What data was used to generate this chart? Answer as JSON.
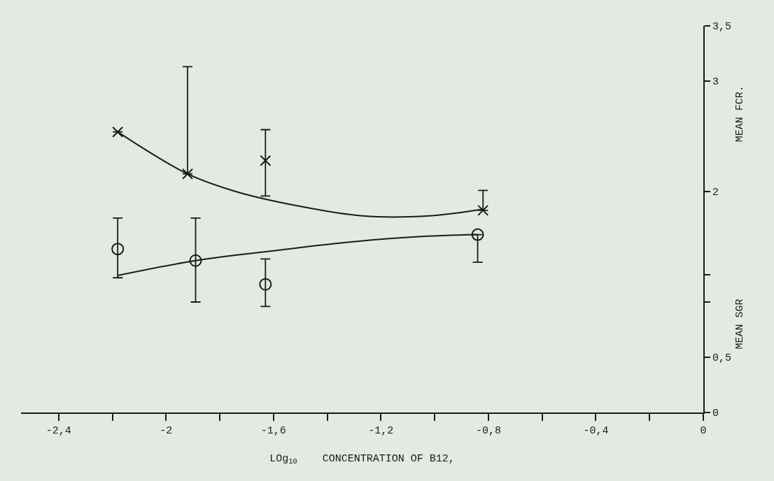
{
  "chart_data": {
    "type": "scatter",
    "xlabel": "LOg$_{10}$    CONCENTRATION OF B12,",
    "ylabel": "MEAN FCR.",
    "y2label": "MEAN SGR",
    "xlim": [
      -2.54,
      0
    ],
    "xticks": [
      {
        "value": -2.4,
        "label": "-2,4"
      },
      {
        "value": -2.2,
        "label": null
      },
      {
        "value": -2,
        "label": "-2"
      },
      {
        "value": -1.8,
        "label": null
      },
      {
        "value": -1.6,
        "label": "-1,6"
      },
      {
        "value": -1.4,
        "label": null
      },
      {
        "value": -1.2,
        "label": "-1,2"
      },
      {
        "value": -1,
        "label": null
      },
      {
        "value": -0.8,
        "label": "-0,8"
      },
      {
        "value": -0.6,
        "label": null
      },
      {
        "value": -0.4,
        "label": "-0,4"
      },
      {
        "value": -0.2,
        "label": null
      },
      {
        "value": 0,
        "label": "0"
      }
    ],
    "ylim": [
      0,
      3.5
    ],
    "yticks": [
      0,
      {
        "value": 0.5,
        "label": "0,5"
      },
      {
        "value": 1,
        "label": null
      },
      {
        "value": 1.25,
        "label": null
      },
      2,
      3,
      {
        "value": 3.5,
        "label": "3,5"
      }
    ],
    "grid": false,
    "series": [
      {
        "marker": "cross",
        "color": "#1a1a1a",
        "x": [
          -2.18,
          -1.92,
          -1.63,
          -0.82
        ],
        "values": [
          2.54,
          2.16,
          2.28,
          1.83
        ],
        "errors": [
          null,
          [
            2.16,
            3.13
          ],
          [
            1.96,
            2.56
          ],
          [
            1.83,
            2.01
          ]
        ]
      },
      {
        "type": "line",
        "line_style": "solid",
        "color": "#1a1a1a",
        "x": [
          -2.18,
          -1.92,
          -1.74,
          -1.53,
          -1.27,
          -1.02,
          -0.82
        ],
        "values": [
          2.54,
          2.16,
          2.0,
          1.88,
          1.78,
          1.78,
          1.84
        ]
      },
      {
        "marker": "circle",
        "color": "#1a1a1a",
        "x": [
          -2.18,
          -1.89,
          -1.63,
          -0.84
        ],
        "values": [
          1.48,
          1.375,
          1.16,
          1.61
        ],
        "errors": [
          [
            1.22,
            1.76
          ],
          [
            1.0,
            1.76
          ],
          [
            0.96,
            1.39
          ],
          [
            1.36,
            1.61
          ]
        ]
      },
      {
        "type": "line",
        "line_style": "solid",
        "color": "#1a1a1a",
        "x": [
          -2.18,
          -1.89,
          -1.58,
          -1.33,
          -1.07,
          -0.84
        ],
        "values": [
          1.24,
          1.375,
          1.47,
          1.54,
          1.59,
          1.61
        ]
      }
    ]
  }
}
